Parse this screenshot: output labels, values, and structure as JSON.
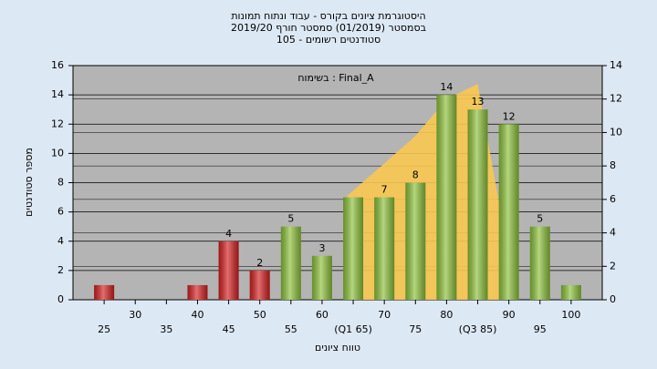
{
  "chart_data": {
    "type": "bar",
    "title": [
      "היסטוגרמת ציונים בקורס - עבוד ונתוח תמונות",
      "בסמסטר (01/2019) סמסטר חורף 2019/20",
      "סטודנטים רשומים - 105"
    ],
    "annotation": "בשימוח : Final_A",
    "x_label": "טווח ציונים",
    "y_label": "מספר סטודנטים",
    "x": [
      25,
      30,
      35,
      40,
      45,
      50,
      55,
      60,
      65,
      70,
      75,
      80,
      85,
      90,
      95,
      100
    ],
    "values": [
      1,
      0,
      0,
      1,
      4,
      2,
      5,
      3,
      7,
      7,
      8,
      14,
      13,
      12,
      5,
      1
    ],
    "value_labels": [
      null,
      null,
      null,
      null,
      "4",
      "2",
      "5",
      "3",
      null,
      "7",
      "8",
      "14",
      "13",
      "12",
      "5",
      null
    ],
    "colors": [
      "#d42020",
      "#d42020",
      "#d42020",
      "#d42020",
      "#d42020",
      "#d42020",
      "#8cc03a",
      "#8cc03a",
      "#8cc03a",
      "#8cc03a",
      "#8cc03a",
      "#8cc03a",
      "#8cc03a",
      "#8cc03a",
      "#8cc03a",
      "#8cc03a"
    ],
    "area": {
      "color": "#f8c850",
      "axis": "y2",
      "x": [
        64,
        64,
        68,
        75,
        80,
        85,
        89,
        89
      ],
      "values": [
        0,
        6.2,
        7.5,
        9.8,
        12,
        12.9,
        4.6,
        0
      ]
    },
    "xlim": [
      20,
      105
    ],
    "xticks": [
      25,
      30,
      35,
      40,
      45,
      50,
      55,
      60,
      {
        "value": 65,
        "label": "(Q1 65)"
      },
      70,
      75,
      80,
      {
        "value": 85,
        "label": "(Q3 85)"
      },
      90,
      95,
      100
    ],
    "ylim": [
      0,
      16
    ],
    "yticks": [
      0,
      2,
      4,
      6,
      8,
      10,
      12,
      14,
      16
    ],
    "y2lim": [
      0,
      14
    ],
    "y2ticks": [
      0,
      2,
      4,
      6,
      8,
      10,
      12,
      14
    ],
    "grid": true
  }
}
